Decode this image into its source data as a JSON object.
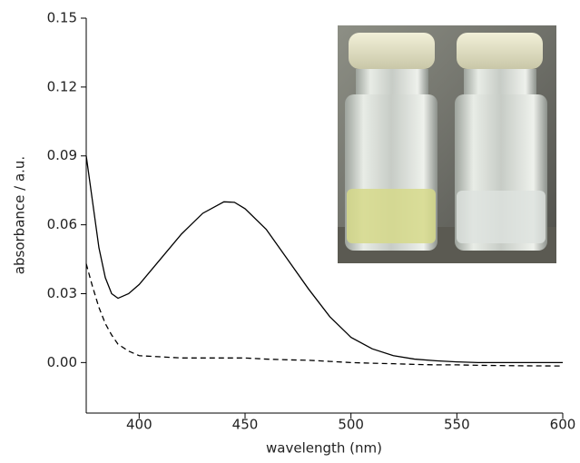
{
  "chart_data": {
    "type": "line",
    "xlabel": "wavelength (nm)",
    "ylabel": "absorbance / a.u.",
    "x": [
      375,
      378,
      381,
      384,
      387,
      390,
      395,
      400,
      410,
      420,
      430,
      440,
      445,
      450,
      460,
      470,
      480,
      490,
      500,
      510,
      520,
      530,
      540,
      550,
      560,
      580,
      600
    ],
    "series": [
      {
        "color": "#000000",
        "dashed": false,
        "values": [
          0.09,
          0.07,
          0.05,
          0.037,
          0.03,
          0.028,
          0.03,
          0.034,
          0.045,
          0.056,
          0.065,
          0.07,
          0.0698,
          0.067,
          0.058,
          0.045,
          0.032,
          0.02,
          0.011,
          0.006,
          0.003,
          0.0015,
          0.0008,
          0.0003,
          0.0,
          0.0,
          0.0
        ]
      },
      {
        "color": "#000000",
        "dashed": true,
        "values": [
          0.043,
          0.033,
          0.024,
          0.017,
          0.012,
          0.008,
          0.005,
          0.003,
          0.0025,
          0.002,
          0.002,
          0.002,
          0.002,
          0.002,
          0.0015,
          0.0012,
          0.001,
          0.0005,
          0.0,
          -0.0003,
          -0.0005,
          -0.0008,
          -0.001,
          -0.001,
          -0.0012,
          -0.0014,
          -0.0015
        ]
      }
    ],
    "xlim": [
      375,
      600
    ],
    "xticks": [
      400,
      450,
      500,
      550,
      600
    ],
    "ylim": [
      -0.022,
      0.15
    ],
    "yticks": [
      {
        "value": 0,
        "label": "0.00"
      },
      0.03,
      0.06,
      0.09,
      0.12,
      0.15
    ],
    "grid": false
  }
}
